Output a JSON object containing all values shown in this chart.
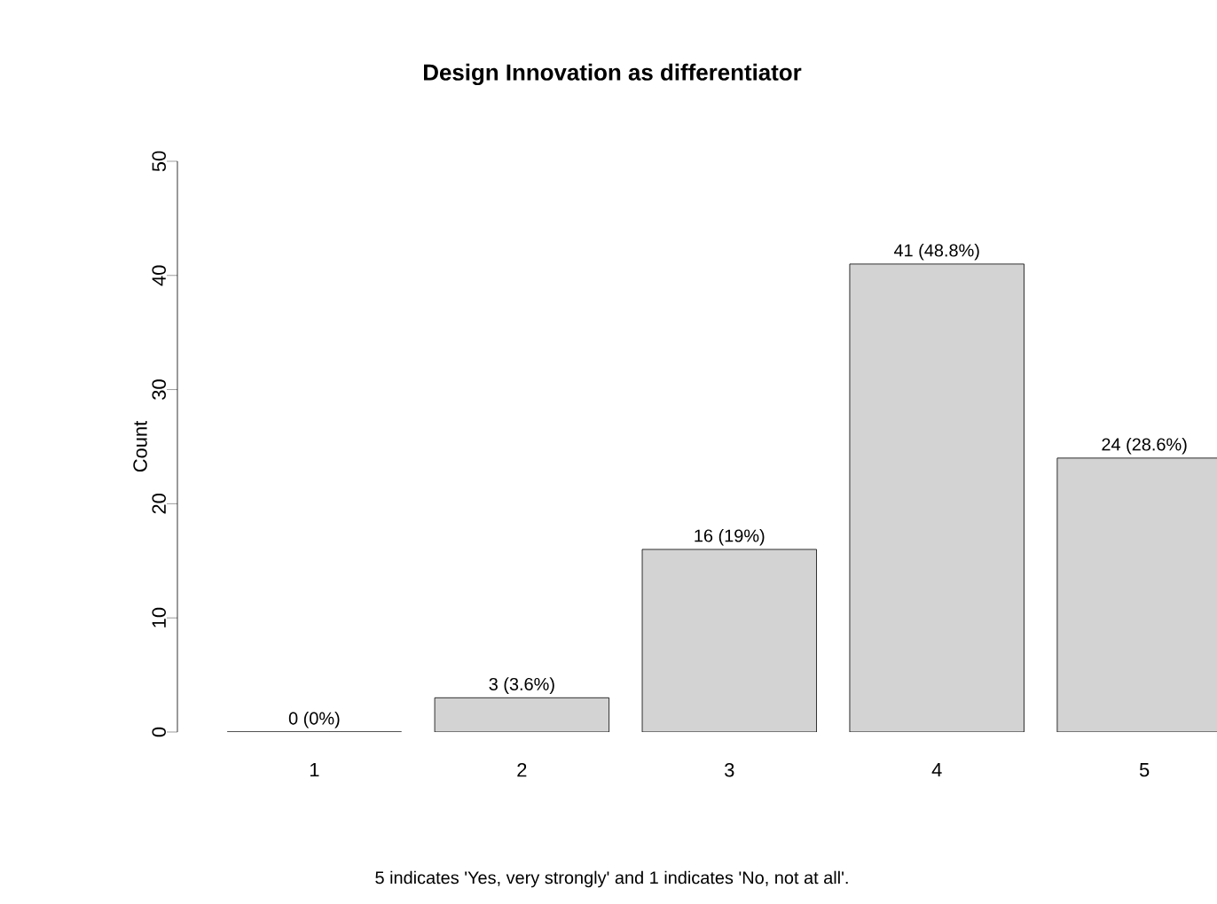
{
  "chart_data": {
    "type": "bar",
    "title": "Design Innovation as differentiator",
    "ylabel": "Count",
    "categories": [
      "1",
      "2",
      "3",
      "4",
      "5"
    ],
    "values": [
      0,
      3,
      16,
      41,
      24
    ],
    "value_labels": [
      "0 (0%)",
      "3 (3.6%)",
      "16 (19%)",
      "41 (48.8%)",
      "24 (28.6%)"
    ],
    "color": "#d3d3d3",
    "ylim": [
      0,
      50
    ],
    "yticks": [
      0,
      10,
      20,
      30,
      40,
      50
    ],
    "grid": false,
    "annotations": [
      "5 indicates 'Yes, very strongly' and 1 indicates 'No, not at all'."
    ]
  }
}
